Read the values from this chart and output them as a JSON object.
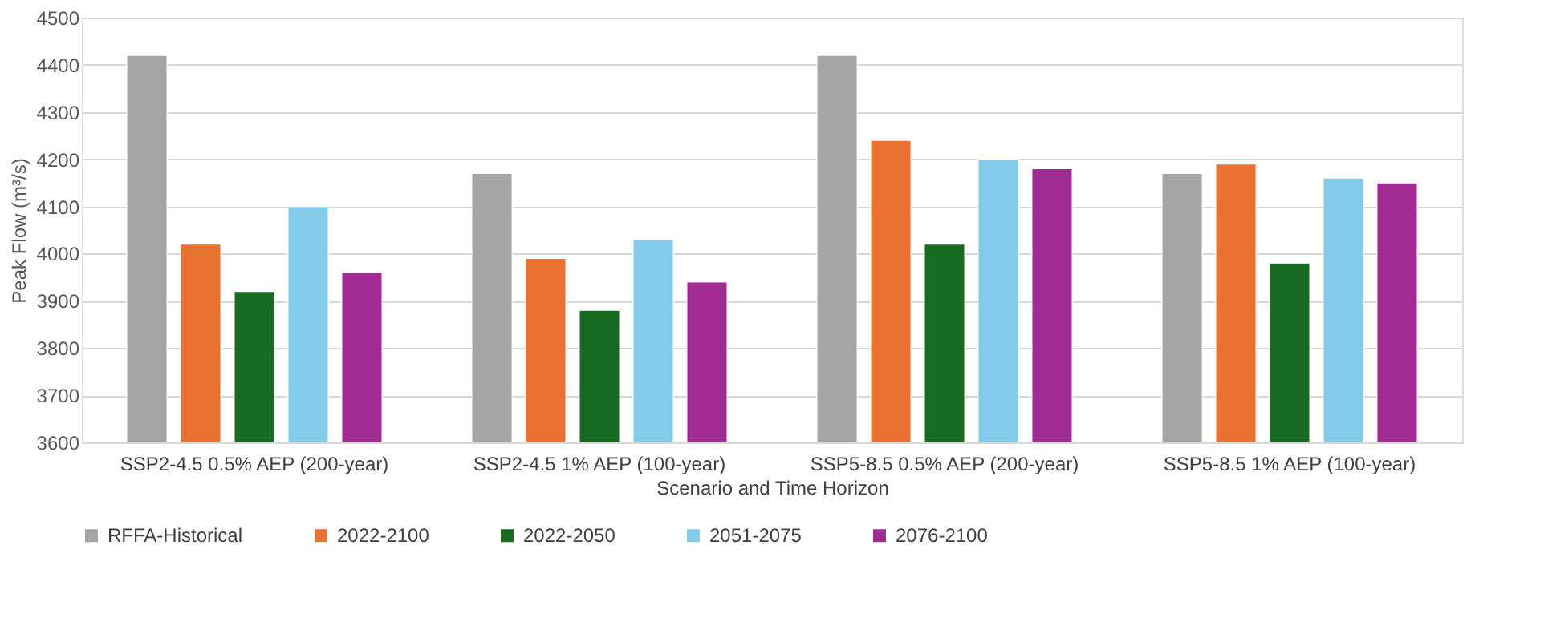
{
  "chart_data": {
    "type": "bar",
    "xlabel": "Scenario and Time Horizon",
    "ylabel": "Peak Flow (m³/s)",
    "categories": [
      "SSP2-4.5 0.5% AEP (200-year)",
      "SSP2-4.5 1% AEP (100-year)",
      "SSP5-8.5 0.5% AEP (200-year)",
      "SSP5-8.5 1% AEP (100-year)"
    ],
    "series": [
      {
        "name": "RFFA-Historical",
        "color": "#a5a5a5",
        "values": [
          4420,
          4170,
          4420,
          4170
        ]
      },
      {
        "name": "2022-2100",
        "color": "#e97132",
        "values": [
          4020,
          3990,
          4240,
          4190
        ]
      },
      {
        "name": "2022-2050",
        "color": "#196b24",
        "values": [
          3920,
          3880,
          4020,
          3980
        ]
      },
      {
        "name": "2051-2075",
        "color": "#83cbeb",
        "values": [
          4100,
          4030,
          4200,
          4160
        ]
      },
      {
        "name": "2076-2100",
        "color": "#a02b93",
        "values": [
          3960,
          3940,
          4180,
          4150
        ]
      }
    ],
    "ylim": [
      3600,
      4500
    ],
    "yticks": [
      3600,
      3700,
      3800,
      3900,
      4000,
      4100,
      4200,
      4300,
      4400,
      4500
    ],
    "grid": "y",
    "legend": "bottom"
  }
}
